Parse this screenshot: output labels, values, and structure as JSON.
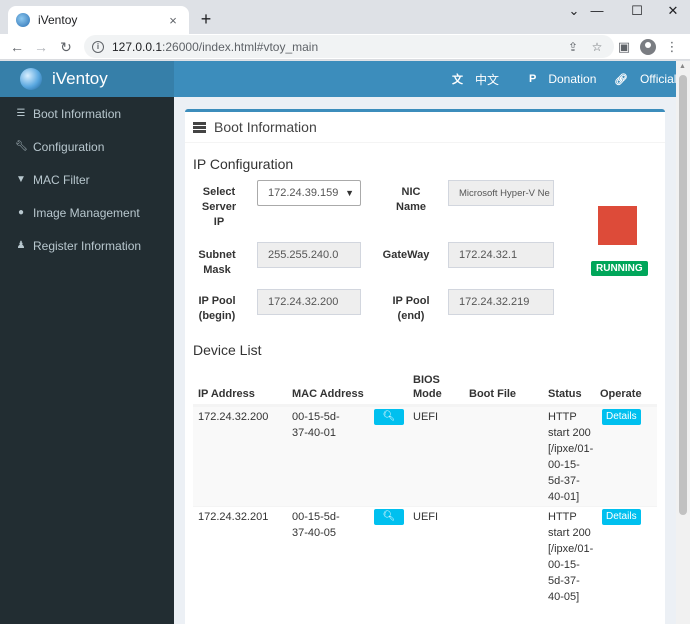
{
  "browser": {
    "tab_title": "iVentoy",
    "tab_close": "×",
    "new_tab": "+",
    "url_host": "127.0.0.1",
    "url_path": ":26000/index.html#vtoy_main",
    "icons": [
      "back-icon",
      "forward-icon",
      "reload-icon",
      "info-icon",
      "share-icon",
      "star-icon",
      "sidepanel-icon",
      "profile-icon",
      "menu-icon"
    ]
  },
  "app": {
    "logo": "iVentoy",
    "topnav": {
      "lang": "中文",
      "donation": "Donation",
      "official": "Official"
    },
    "sidebar": [
      {
        "label": "Boot Information",
        "icon": "server-icon"
      },
      {
        "label": "Configuration",
        "icon": "wrench-icon"
      },
      {
        "label": "MAC Filter",
        "icon": "filter-icon"
      },
      {
        "label": "Image Management",
        "icon": "globe-icon"
      },
      {
        "label": "Register Information",
        "icon": "user-icon"
      }
    ],
    "colors": {
      "header": "#3c8dbc",
      "sidebar": "#222d32",
      "running": "#00a65a",
      "stop_square": "#dd4b39",
      "info_button": "#00c0ef"
    }
  },
  "boot": {
    "title": "Boot Information",
    "ip_config_heading": "IP Configuration",
    "labels": {
      "server_ip": [
        "Select",
        "Server",
        "IP"
      ],
      "nic_name": [
        "NIC",
        "Name"
      ],
      "subnet_mask": [
        "Subnet",
        "Mask"
      ],
      "gateway": "GateWay",
      "pool_begin": [
        "IP Pool",
        "(begin)"
      ],
      "pool_end": [
        "IP Pool",
        "(end)"
      ]
    },
    "values": {
      "server_ip": "172.24.39.159",
      "nic_name": "Microsoft Hyper-V Ne",
      "subnet_mask": "255.255.240.0",
      "gateway": "172.24.32.1",
      "pool_begin": "172.24.32.200",
      "pool_end": "172.24.32.219"
    },
    "status": "RUNNING"
  },
  "devices": {
    "heading": "Device List",
    "columns": {
      "ip": "IP Address",
      "mac": "MAC Address",
      "bios": [
        "BIOS",
        "Mode"
      ],
      "boot_file": "Boot File",
      "status": "Status",
      "operate": "Operate"
    },
    "rows": [
      {
        "ip": "172.24.32.200",
        "mac": [
          "00-15-5d-",
          "37-40-01"
        ],
        "bios": "UEFI",
        "boot_file": "",
        "status": [
          "HTTP",
          "start 200",
          "[/ipxe/01-",
          "00-15-",
          "5d-37-",
          "40-01]"
        ],
        "action": "Details"
      },
      {
        "ip": "172.24.32.201",
        "mac": [
          "00-15-5d-",
          "37-40-05"
        ],
        "bios": "UEFI",
        "boot_file": "",
        "status": [
          "HTTP",
          "start 200",
          "[/ipxe/01-",
          "00-15-",
          "5d-37-",
          "40-05]"
        ],
        "action": "Details"
      }
    ]
  }
}
